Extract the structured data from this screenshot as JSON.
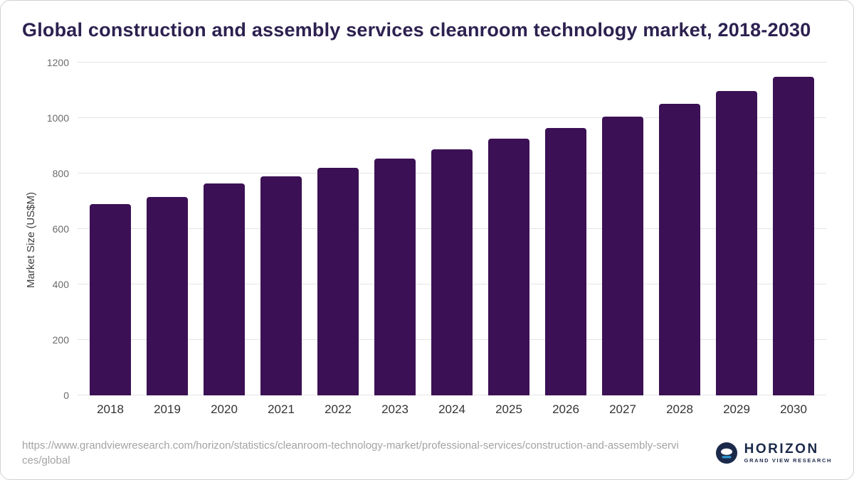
{
  "title": "Global construction and assembly services cleanroom technology market, 2018-2030",
  "chart_data": {
    "type": "bar",
    "title": "Global construction and assembly services cleanroom technology market, 2018-2030",
    "categories": [
      "2018",
      "2019",
      "2020",
      "2021",
      "2022",
      "2023",
      "2024",
      "2025",
      "2026",
      "2027",
      "2028",
      "2029",
      "2030"
    ],
    "values": [
      690,
      715,
      765,
      790,
      820,
      853,
      887,
      925,
      963,
      1006,
      1051,
      1098,
      1150
    ],
    "xlabel": "",
    "ylabel": "Market Size (US$M)",
    "ylim": [
      0,
      1200
    ],
    "yticks": [
      0,
      200,
      400,
      600,
      800,
      1000,
      1200
    ],
    "bar_color": "#3b1054",
    "grid": true,
    "legend_position": "none"
  },
  "footer": {
    "source_url": "https://www.grandviewresearch.com/horizon/statistics/cleanroom-technology-market/professional-services/construction-and-assembly-services/global",
    "logo_name": "HORIZON",
    "logo_sub": "GRAND VIEW RESEARCH"
  },
  "colors": {
    "title": "#2d2150",
    "bar": "#3b1054",
    "gridline": "#e4e4e6",
    "axis_text": "#6b6b6b",
    "xtick_text": "#333333",
    "source_text": "#a3a3a3",
    "logo_navy": "#1b2a4b",
    "logo_blue": "#2f9bd6"
  }
}
